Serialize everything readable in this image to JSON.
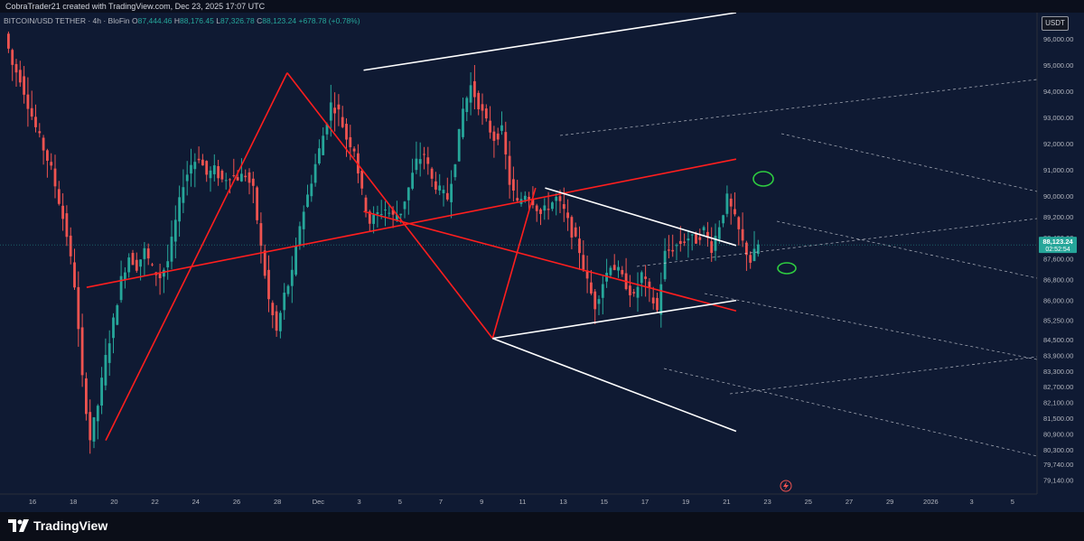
{
  "header": {
    "attribution": "CobraTrader21 created with TradingView.com, Dec 23, 2025 17:07 UTC"
  },
  "symbol": {
    "name": "BITCOIN/USD TETHER · 4h · BloFin",
    "open_label": "O",
    "open": "87,444.46",
    "high_label": "H",
    "high": "88,176.45",
    "low_label": "L",
    "low": "87,326.78",
    "close_label": "C",
    "close": "88,123.24",
    "change": "+678.78 (+0.78%)"
  },
  "currency": "USDT",
  "current_price": {
    "value": "88,123.24",
    "countdown": "02:52:54"
  },
  "brand": {
    "logo_text": "TradingView"
  },
  "colors": {
    "up": "#26a69a",
    "down": "#ef5350",
    "drawing_red": "#ff1e1e",
    "drawing_white": "#ffffff",
    "marker_green": "#2ecc40"
  },
  "chart_data": {
    "type": "candlestick",
    "title": "",
    "ylim": [
      78600,
      97000
    ],
    "price_ticks": [
      "96,000.00",
      "95,000.00",
      "94,000.00",
      "93,000.00",
      "92,000.00",
      "91,000.00",
      "90,000.00",
      "89,200.00",
      "88,400.00",
      "87,600.00",
      "86,800.00",
      "86,000.00",
      "85,250.00",
      "84,500.00",
      "83,900.00",
      "83,300.00",
      "82,700.00",
      "82,100.00",
      "81,500.00",
      "80,900.00",
      "80,300.00",
      "79,740.00",
      "79,140.00"
    ],
    "time_ticks": [
      "16",
      "18",
      "20",
      "22",
      "24",
      "26",
      "28",
      "Dec",
      "3",
      "5",
      "7",
      "9",
      "11",
      "13",
      "15",
      "17",
      "19",
      "21",
      "23",
      "25",
      "27",
      "29",
      "2026",
      "3",
      "5"
    ],
    "price_path": [
      [
        0,
        96200
      ],
      [
        1,
        95000
      ],
      [
        2,
        94500
      ],
      [
        3,
        93500
      ],
      [
        4,
        92600
      ],
      [
        5,
        91800
      ],
      [
        6,
        91000
      ],
      [
        7,
        89800
      ],
      [
        8,
        88500
      ],
      [
        9,
        86600
      ],
      [
        10,
        83000
      ],
      [
        11,
        80700
      ],
      [
        12,
        82000
      ],
      [
        13,
        83800
      ],
      [
        14,
        85200
      ],
      [
        15,
        86800
      ],
      [
        16,
        87700
      ],
      [
        17,
        87300
      ],
      [
        18,
        87900
      ],
      [
        19,
        87200
      ],
      [
        20,
        86900
      ],
      [
        21,
        87500
      ],
      [
        22,
        89000
      ],
      [
        23,
        90500
      ],
      [
        24,
        91200
      ],
      [
        25,
        91500
      ],
      [
        26,
        90800
      ],
      [
        27,
        91000
      ],
      [
        28,
        90600
      ],
      [
        29,
        90800
      ],
      [
        30,
        90700
      ],
      [
        31,
        90800
      ],
      [
        32,
        90200
      ],
      [
        33,
        88000
      ],
      [
        34,
        86000
      ],
      [
        35,
        84800
      ],
      [
        36,
        86200
      ],
      [
        37,
        87000
      ],
      [
        38,
        88900
      ],
      [
        39,
        90000
      ],
      [
        40,
        91200
      ],
      [
        41,
        92300
      ],
      [
        42,
        93500
      ],
      [
        43,
        93200
      ],
      [
        44,
        92200
      ],
      [
        45,
        91800
      ],
      [
        46,
        90100
      ],
      [
        47,
        89000
      ],
      [
        48,
        89300
      ],
      [
        49,
        89500
      ],
      [
        50,
        89200
      ],
      [
        51,
        89400
      ],
      [
        52,
        90300
      ],
      [
        53,
        91300
      ],
      [
        54,
        91600
      ],
      [
        55,
        90600
      ],
      [
        56,
        90200
      ],
      [
        57,
        89900
      ],
      [
        58,
        91400
      ],
      [
        59,
        93300
      ],
      [
        60,
        94200
      ],
      [
        61,
        93500
      ],
      [
        62,
        92800
      ],
      [
        63,
        92200
      ],
      [
        64,
        92500
      ],
      [
        65,
        90500
      ],
      [
        66,
        89700
      ],
      [
        67,
        90100
      ],
      [
        68,
        89800
      ],
      [
        69,
        89300
      ],
      [
        70,
        89600
      ],
      [
        71,
        89900
      ],
      [
        72,
        89400
      ],
      [
        73,
        88600
      ],
      [
        74,
        87900
      ],
      [
        75,
        86700
      ],
      [
        76,
        85800
      ],
      [
        77,
        86700
      ],
      [
        78,
        87400
      ],
      [
        79,
        87100
      ],
      [
        80,
        86600
      ],
      [
        81,
        86100
      ],
      [
        82,
        87000
      ],
      [
        83,
        86300
      ],
      [
        84,
        85600
      ],
      [
        85,
        87800
      ],
      [
        86,
        88000
      ],
      [
        87,
        88200
      ],
      [
        88,
        88400
      ],
      [
        89,
        88300
      ],
      [
        90,
        88700
      ],
      [
        91,
        88000
      ],
      [
        92,
        88900
      ],
      [
        93,
        89900
      ],
      [
        94,
        89100
      ],
      [
        95,
        88200
      ],
      [
        96,
        87500
      ],
      [
        97,
        88123
      ]
    ],
    "x_range": [
      0,
      216
    ],
    "annotations": [
      {
        "kind": "red-line",
        "points": [
          [
            21,
            80650
          ],
          [
            59,
            94700
          ]
        ]
      },
      {
        "kind": "red-line",
        "points": [
          [
            59,
            94700
          ],
          [
            102,
            84550
          ]
        ]
      },
      {
        "kind": "red-line",
        "points": [
          [
            102,
            84550
          ],
          [
            111,
            90300
          ]
        ]
      },
      {
        "kind": "red-line",
        "points": [
          [
            17,
            86500
          ],
          [
            153,
            91400
          ]
        ]
      },
      {
        "kind": "red-line",
        "points": [
          [
            75,
            89400
          ],
          [
            153,
            85600
          ]
        ]
      },
      {
        "kind": "white-line",
        "points": [
          [
            75,
            94800
          ],
          [
            153,
            97000
          ]
        ]
      },
      {
        "kind": "white-line",
        "points": [
          [
            113,
            90300
          ],
          [
            153,
            88100
          ]
        ]
      },
      {
        "kind": "white-line",
        "points": [
          [
            102,
            84550
          ],
          [
            153,
            86000
          ]
        ]
      },
      {
        "kind": "white-line",
        "points": [
          [
            102,
            84550
          ],
          [
            153,
            81000
          ]
        ]
      }
    ]
  }
}
